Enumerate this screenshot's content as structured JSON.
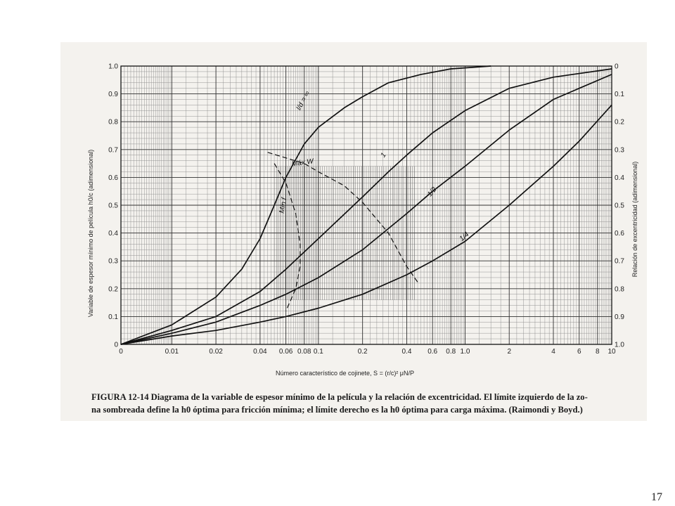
{
  "page_number": "17",
  "caption": {
    "label": "FIGURA 12-14",
    "line1": "Diagrama de la variable de espesor mínimo de la película y la relación de excentricidad. El límite izquierdo de la zo-",
    "line2": "na sombreada define la h0 óptima para fricción mínima; el límite derecho es la h0 óptima para carga máxima. (Raimondi y Boyd.)"
  },
  "chart_data": {
    "type": "line",
    "title": "",
    "xlabel": "Número característico de cojinete, S = (r/c)² μN/P",
    "ylabel": "Variable de espesor mínimo de película h0/c (adimensional)",
    "y2label": "Relación de excentricidad (adimensional)",
    "xscale": "log",
    "xlim": [
      0.0045,
      10
    ],
    "ylim": [
      0,
      1.0
    ],
    "x_ticks": [
      "0",
      "0.01",
      "0.02",
      "0.04",
      "0.06",
      "0.08",
      "0.1",
      "0.2",
      "0.4",
      "0.6",
      "0.8",
      "1.0",
      "2",
      "4",
      "6",
      "8",
      "10"
    ],
    "x_tick_values": [
      0.0045,
      0.01,
      0.02,
      0.04,
      0.06,
      0.08,
      0.1,
      0.2,
      0.4,
      0.6,
      0.8,
      1.0,
      2,
      4,
      6,
      8,
      10
    ],
    "y_ticks": [
      "0",
      "0.1",
      "0.2",
      "0.3",
      "0.4",
      "0.5",
      "0.6",
      "0.7",
      "0.8",
      "0.9",
      "1.0"
    ],
    "y2_ticks": [
      "1.0",
      "0.9",
      "0.8",
      "0.7",
      "0.6",
      "0.5",
      "0.4",
      "0.3",
      "0.2",
      "0.1",
      "0"
    ],
    "grid": true,
    "series": [
      {
        "name": "l/d = ∞",
        "style": "solid",
        "x": [
          0.0045,
          0.01,
          0.02,
          0.03,
          0.04,
          0.05,
          0.06,
          0.08,
          0.1,
          0.15,
          0.2,
          0.3,
          0.5,
          0.8,
          1.5
        ],
        "y": [
          0.0,
          0.07,
          0.17,
          0.27,
          0.38,
          0.5,
          0.6,
          0.72,
          0.78,
          0.85,
          0.89,
          0.94,
          0.97,
          0.99,
          1.0
        ]
      },
      {
        "name": "1",
        "style": "solid",
        "x": [
          0.0045,
          0.01,
          0.02,
          0.04,
          0.06,
          0.1,
          0.2,
          0.3,
          0.4,
          0.6,
          1.0,
          2,
          4,
          10
        ],
        "y": [
          0.0,
          0.05,
          0.1,
          0.19,
          0.27,
          0.38,
          0.53,
          0.62,
          0.68,
          0.76,
          0.84,
          0.92,
          0.96,
          0.99
        ]
      },
      {
        "name": "1/2",
        "style": "solid",
        "x": [
          0.0045,
          0.01,
          0.02,
          0.04,
          0.06,
          0.1,
          0.2,
          0.4,
          0.6,
          1.0,
          2,
          4,
          6,
          10
        ],
        "y": [
          0.0,
          0.04,
          0.08,
          0.14,
          0.18,
          0.24,
          0.34,
          0.47,
          0.55,
          0.64,
          0.77,
          0.88,
          0.92,
          0.97
        ]
      },
      {
        "name": "1/4",
        "style": "solid",
        "x": [
          0.0045,
          0.01,
          0.02,
          0.04,
          0.06,
          0.1,
          0.2,
          0.4,
          0.6,
          1.0,
          2,
          4,
          6,
          10
        ],
        "y": [
          0.0,
          0.03,
          0.05,
          0.08,
          0.1,
          0.13,
          0.18,
          0.25,
          0.3,
          0.37,
          0.5,
          0.64,
          0.73,
          0.86
        ]
      },
      {
        "name": "Máx W",
        "style": "dashed",
        "x": [
          0.045,
          0.06,
          0.08,
          0.1,
          0.15,
          0.2,
          0.3,
          0.4,
          0.48
        ],
        "y": [
          0.69,
          0.67,
          0.65,
          0.62,
          0.57,
          0.51,
          0.4,
          0.28,
          0.22
        ]
      },
      {
        "name": "Mín f",
        "style": "dashed",
        "x": [
          0.05,
          0.06,
          0.07,
          0.075,
          0.075,
          0.07,
          0.06
        ],
        "y": [
          0.65,
          0.58,
          0.47,
          0.36,
          0.28,
          0.2,
          0.12
        ]
      }
    ]
  }
}
